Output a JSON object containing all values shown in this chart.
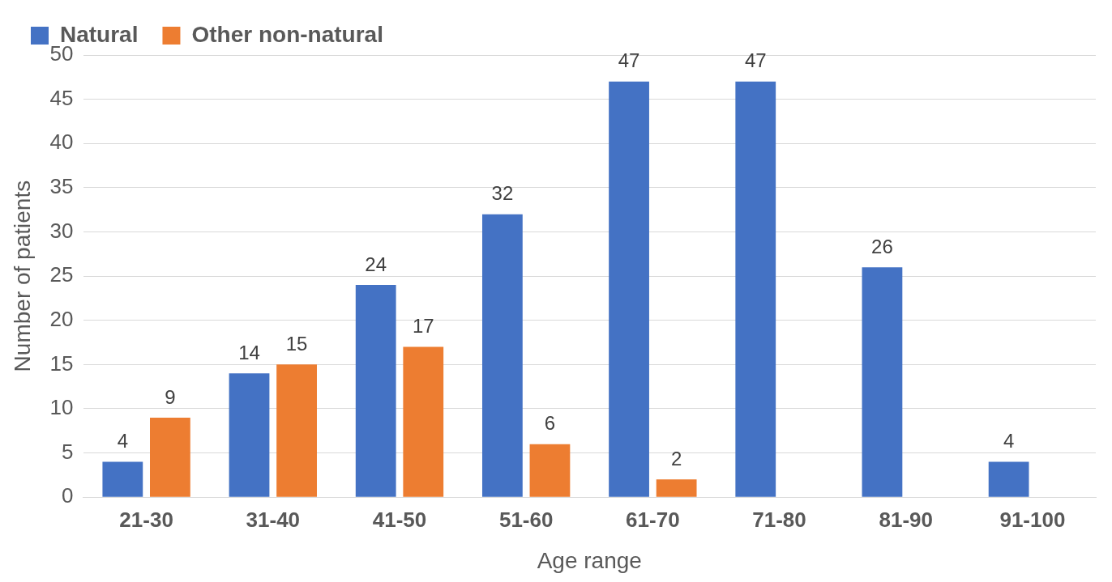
{
  "chart_data": {
    "type": "bar",
    "xlabel": "Age range",
    "ylabel": "Number of patients",
    "categories": [
      "21-30",
      "31-40",
      "41-50",
      "51-60",
      "61-70",
      "71-80",
      "81-90",
      "91-100"
    ],
    "series": [
      {
        "name": "Natural",
        "color": "#4472c4",
        "values": [
          4,
          14,
          24,
          32,
          47,
          47,
          26,
          4
        ]
      },
      {
        "name": "Other non-natural",
        "color": "#ed7d31",
        "values": [
          9,
          15,
          17,
          6,
          2,
          null,
          null,
          null
        ]
      }
    ],
    "ylim": [
      0,
      50
    ],
    "yticks": [
      0,
      5,
      10,
      15,
      20,
      25,
      30,
      35,
      40,
      45,
      50
    ],
    "grid": "y",
    "legend": "top left",
    "data_labels": true
  }
}
